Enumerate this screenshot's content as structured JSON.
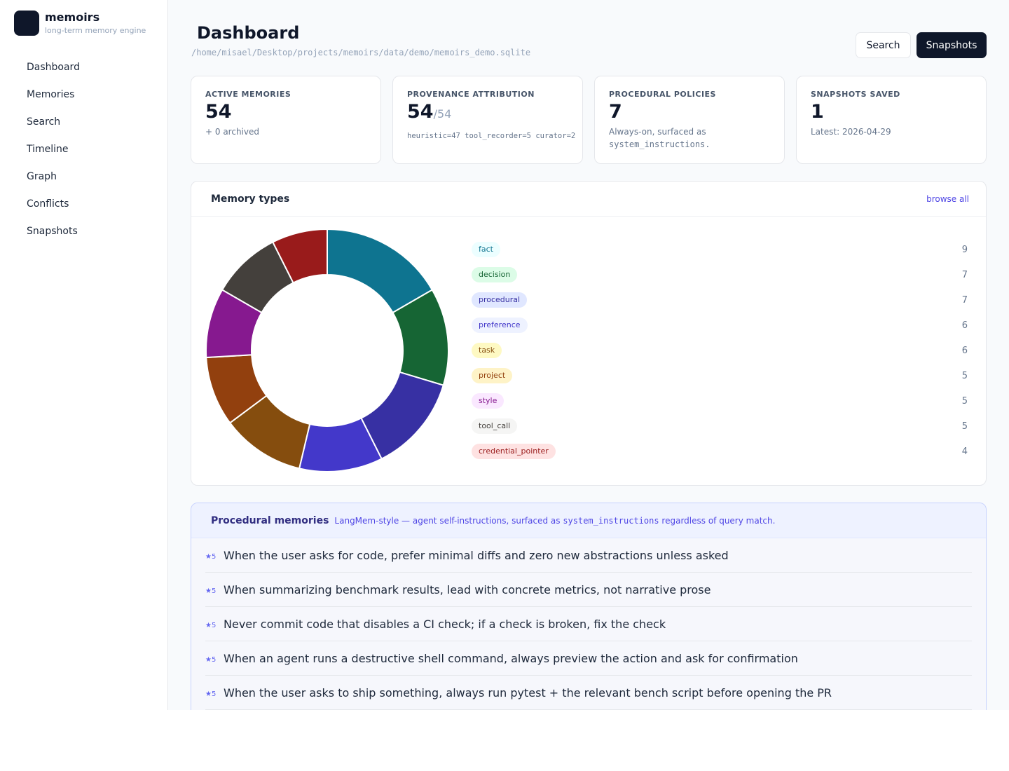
{
  "brand": {
    "name": "memoirs",
    "tagline": "long-term memory engine"
  },
  "nav": [
    "Dashboard",
    "Memories",
    "Search",
    "Timeline",
    "Graph",
    "Conflicts",
    "Snapshots"
  ],
  "header": {
    "title": "Dashboard",
    "db_path": "/home/misael/Desktop/projects/memoirs/data/demo/memoirs_demo.sqlite",
    "search_label": "Search",
    "snapshots_label": "Snapshots"
  },
  "stats": [
    {
      "label": "Active memories",
      "value": "54",
      "denom": "",
      "sub": "+ 0 archived",
      "sub2": ""
    },
    {
      "label": "Provenance attribution",
      "value": "54",
      "denom": "/54",
      "sub": "heuristic=47  tool_recorder=5  curator=2",
      "sub2": ""
    },
    {
      "label": "Procedural policies",
      "value": "7",
      "denom": "",
      "sub": "Always-on, surfaced as",
      "sub2": "system_instructions."
    },
    {
      "label": "Snapshots saved",
      "value": "1",
      "denom": "",
      "sub": "Latest: 2026-04-29",
      "sub2": ""
    }
  ],
  "memory_types": {
    "title": "Memory types",
    "browse_label": "browse all",
    "colors": [
      "#0e7490",
      "#166534",
      "#3730a3",
      "#4338ca",
      "#854d0e",
      "#92400e",
      "#86198f",
      "#44403c",
      "#991b1b"
    ],
    "pill_bg": [
      "#ecfeff",
      "#dcfce7",
      "#e0e7ff",
      "#eef2ff",
      "#fef9c3",
      "#fef3c7",
      "#fae8ff",
      "#f5f5f4",
      "#fee2e2"
    ],
    "pill_fg": [
      "#0e7490",
      "#166534",
      "#3730a3",
      "#4338ca",
      "#854d0e",
      "#92400e",
      "#86198f",
      "#44403c",
      "#991b1b"
    ]
  },
  "chart_data": {
    "type": "pie",
    "categories": [
      "fact",
      "decision",
      "procedural",
      "preference",
      "task",
      "project",
      "style",
      "tool_call",
      "credential_pointer"
    ],
    "values": [
      9,
      7,
      7,
      6,
      6,
      5,
      5,
      5,
      4
    ]
  },
  "procedural": {
    "title": "Procedural memories",
    "desc_before": "LangMem-style — agent self-instructions, surfaced as",
    "desc_code": "system_instructions",
    "desc_after": "regardless of query match.",
    "items": [
      {
        "weight": "★5",
        "text": "When the user asks for code, prefer minimal diffs and zero new abstractions unless asked"
      },
      {
        "weight": "★5",
        "text": "When summarizing benchmark results, lead with concrete metrics, not narrative prose"
      },
      {
        "weight": "★5",
        "text": "Never commit code that disables a CI check; if a check is broken, fix the check"
      },
      {
        "weight": "★5",
        "text": "When an agent runs a destructive shell command, always preview the action and ask for confirmation"
      },
      {
        "weight": "★5",
        "text": "When the user asks to ship something, always run pytest + the relevant bench script before opening the PR"
      }
    ]
  }
}
